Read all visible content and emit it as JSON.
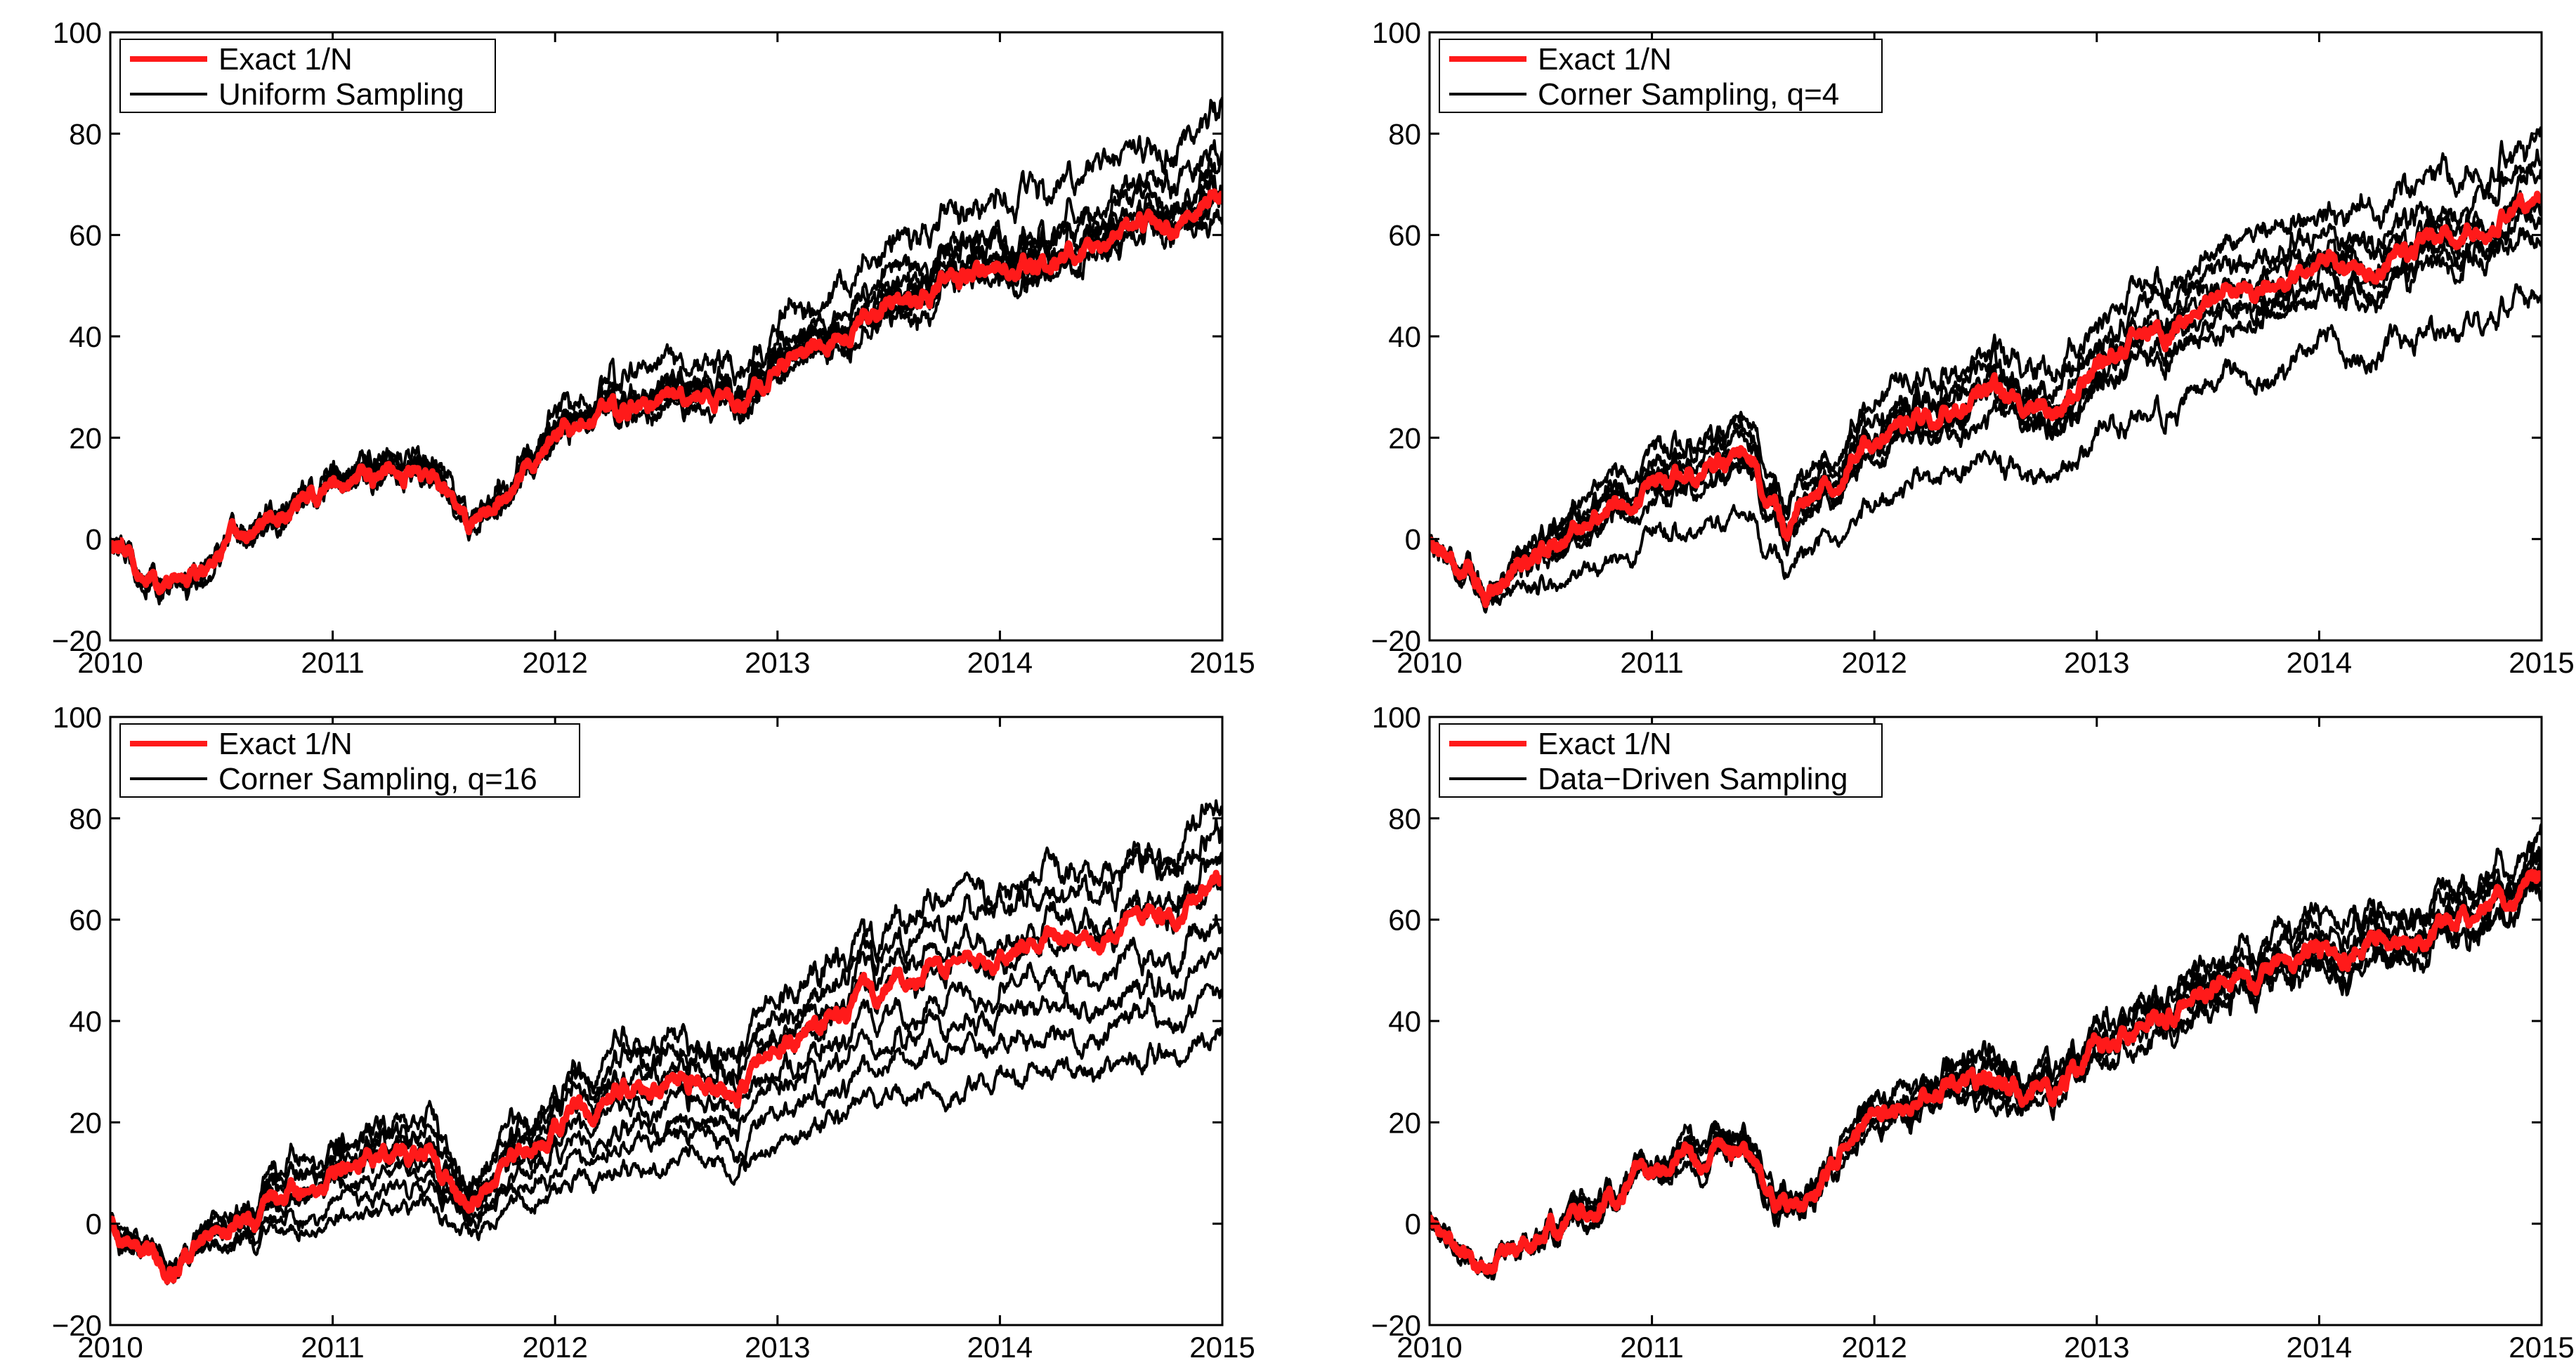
{
  "colors": {
    "exact": "#ff1a1a",
    "sampled": "#000000",
    "axis": "#000000",
    "background": "#ffffff"
  },
  "chart_data": [
    {
      "type": "line",
      "legend": [
        "Exact 1/N",
        "Uniform Sampling"
      ],
      "legend_position": "top-left",
      "xlim": [
        2010,
        2015
      ],
      "ylim": [
        -20,
        100
      ],
      "x_ticks": [
        "2010",
        "2011",
        "2012",
        "2013",
        "2014",
        "2015"
      ],
      "y_ticks": [
        "−20",
        "0",
        "20",
        "40",
        "60",
        "80",
        "100"
      ],
      "exact_series": {
        "name": "Exact 1/N",
        "x": [
          2010.0,
          2010.25,
          2010.5,
          2010.75,
          2011.0,
          2011.25,
          2011.45,
          2011.6,
          2011.75,
          2012.0,
          2012.25,
          2012.5,
          2012.75,
          2012.8,
          2013.0,
          2013.25,
          2013.5,
          2013.75,
          2014.0,
          2014.25,
          2014.5,
          2014.75,
          2015.0
        ],
        "y": [
          0,
          -10,
          -2,
          4,
          10,
          15,
          13,
          2,
          10,
          20,
          25,
          27,
          28,
          24,
          35,
          40,
          46,
          50,
          53,
          55,
          58,
          62,
          67
        ]
      },
      "sampled_series": [
        {
          "name": "Uniform Sampling 1",
          "offset": 0,
          "scale": 1.25
        },
        {
          "name": "Uniform Sampling 2",
          "offset": 0,
          "scale": 1.12
        },
        {
          "name": "Uniform Sampling 3",
          "offset": 0,
          "scale": 1.08
        },
        {
          "name": "Uniform Sampling 4",
          "offset": 0,
          "scale": 1.05
        },
        {
          "name": "Uniform Sampling 5",
          "offset": 0,
          "scale": 1.03
        },
        {
          "name": "Uniform Sampling 6",
          "offset": 0,
          "scale": 1.01
        },
        {
          "name": "Uniform Sampling 7",
          "offset": 0,
          "scale": 0.98
        },
        {
          "name": "Uniform Sampling 8",
          "offset": 0,
          "scale": 0.96
        }
      ]
    },
    {
      "type": "line",
      "legend": [
        "Exact 1/N",
        "Corner Sampling, q=4"
      ],
      "legend_position": "top-left",
      "xlim": [
        2010,
        2015
      ],
      "ylim": [
        -20,
        100
      ],
      "x_ticks": [
        "2010",
        "2011",
        "2012",
        "2013",
        "2014",
        "2015"
      ],
      "y_ticks": [
        "−20",
        "0",
        "20",
        "40",
        "60",
        "80",
        "100"
      ],
      "exact_series": {
        "name": "Exact 1/N",
        "x": [
          2010.0,
          2010.25,
          2010.5,
          2010.75,
          2011.0,
          2011.25,
          2011.45,
          2011.6,
          2011.75,
          2012.0,
          2012.25,
          2012.5,
          2012.75,
          2012.8,
          2013.0,
          2013.25,
          2013.5,
          2013.75,
          2014.0,
          2014.25,
          2014.5,
          2014.75,
          2015.0
        ],
        "y": [
          0,
          -10,
          -2,
          4,
          10,
          15,
          13,
          2,
          10,
          20,
          25,
          27,
          28,
          24,
          35,
          40,
          46,
          50,
          53,
          55,
          58,
          62,
          67
        ]
      },
      "sampled_series": [
        {
          "name": "Corner Sampling q=4 1",
          "offset": 5,
          "scale": 1.12
        },
        {
          "name": "Corner Sampling q=4 2",
          "offset": 3,
          "scale": 1.06
        },
        {
          "name": "Corner Sampling q=4 3",
          "offset": 2,
          "scale": 1.02
        },
        {
          "name": "Corner Sampling q=4 4",
          "offset": 1,
          "scale": 1.0
        },
        {
          "name": "Corner Sampling q=4 5",
          "offset": 0,
          "scale": 0.97
        },
        {
          "name": "Corner Sampling q=4 6",
          "offset": -1,
          "scale": 0.95
        },
        {
          "name": "Corner Sampling q=4 7",
          "offset": -2,
          "scale": 0.93
        },
        {
          "name": "Corner Sampling q=4 8",
          "offset": -9,
          "scale": 0.85
        }
      ]
    },
    {
      "type": "line",
      "legend": [
        "Exact 1/N",
        "Corner Sampling, q=16"
      ],
      "legend_position": "top-left",
      "xlim": [
        2010,
        2015
      ],
      "ylim": [
        -20,
        100
      ],
      "x_ticks": [
        "2010",
        "2011",
        "2012",
        "2013",
        "2014",
        "2015"
      ],
      "y_ticks": [
        "−20",
        "0",
        "20",
        "40",
        "60",
        "80",
        "100"
      ],
      "exact_series": {
        "name": "Exact 1/N",
        "x": [
          2010.0,
          2010.25,
          2010.5,
          2010.75,
          2011.0,
          2011.25,
          2011.45,
          2011.6,
          2011.75,
          2012.0,
          2012.25,
          2012.5,
          2012.75,
          2012.8,
          2013.0,
          2013.25,
          2013.5,
          2013.75,
          2014.0,
          2014.25,
          2014.5,
          2014.75,
          2015.0
        ],
        "y": [
          0,
          -10,
          -2,
          4,
          10,
          15,
          13,
          2,
          10,
          20,
          25,
          27,
          28,
          24,
          35,
          40,
          46,
          50,
          53,
          55,
          58,
          62,
          67
        ]
      },
      "sampled_series": [
        {
          "name": "Corner Sampling q=16 1",
          "offset": 4,
          "scale": 1.17
        },
        {
          "name": "Corner Sampling q=16 2",
          "offset": 3,
          "scale": 1.1
        },
        {
          "name": "Corner Sampling q=16 3",
          "offset": 2,
          "scale": 1.03
        },
        {
          "name": "Corner Sampling q=16 4",
          "offset": 1,
          "scale": 0.98
        },
        {
          "name": "Corner Sampling q=16 5",
          "offset": 0,
          "scale": 0.88
        },
        {
          "name": "Corner Sampling q=16 6",
          "offset": -1,
          "scale": 0.78
        },
        {
          "name": "Corner Sampling q=16 7",
          "offset": -3,
          "scale": 0.72
        },
        {
          "name": "Corner Sampling q=16 8",
          "offset": -5,
          "scale": 0.62
        }
      ]
    },
    {
      "type": "line",
      "legend": [
        "Exact 1/N",
        "Data−Driven Sampling"
      ],
      "legend_position": "top-left",
      "xlim": [
        2010,
        2015
      ],
      "ylim": [
        -20,
        100
      ],
      "x_ticks": [
        "2010",
        "2011",
        "2012",
        "2013",
        "2014",
        "2015"
      ],
      "y_ticks": [
        "−20",
        "0",
        "20",
        "40",
        "60",
        "80",
        "100"
      ],
      "exact_series": {
        "name": "Exact 1/N",
        "x": [
          2010.0,
          2010.25,
          2010.5,
          2010.75,
          2011.0,
          2011.25,
          2011.45,
          2011.6,
          2011.75,
          2012.0,
          2012.25,
          2012.5,
          2012.75,
          2012.8,
          2013.0,
          2013.25,
          2013.5,
          2013.75,
          2014.0,
          2014.25,
          2014.5,
          2014.75,
          2015.0
        ],
        "y": [
          0,
          -10,
          -2,
          4,
          10,
          15,
          13,
          2,
          10,
          20,
          25,
          27,
          28,
          24,
          35,
          40,
          46,
          50,
          53,
          55,
          58,
          62,
          67
        ]
      },
      "sampled_series": [
        {
          "name": "Data-Driven Sampling 1",
          "offset": 1.5,
          "scale": 1.08
        },
        {
          "name": "Data-Driven Sampling 2",
          "offset": 1,
          "scale": 1.05
        },
        {
          "name": "Data-Driven Sampling 3",
          "offset": 0.5,
          "scale": 1.03
        },
        {
          "name": "Data-Driven Sampling 4",
          "offset": 0,
          "scale": 1.01
        },
        {
          "name": "Data-Driven Sampling 5",
          "offset": 0,
          "scale": 0.99
        },
        {
          "name": "Data-Driven Sampling 6",
          "offset": -0.5,
          "scale": 0.97
        },
        {
          "name": "Data-Driven Sampling 7",
          "offset": -1,
          "scale": 0.95
        }
      ]
    }
  ]
}
